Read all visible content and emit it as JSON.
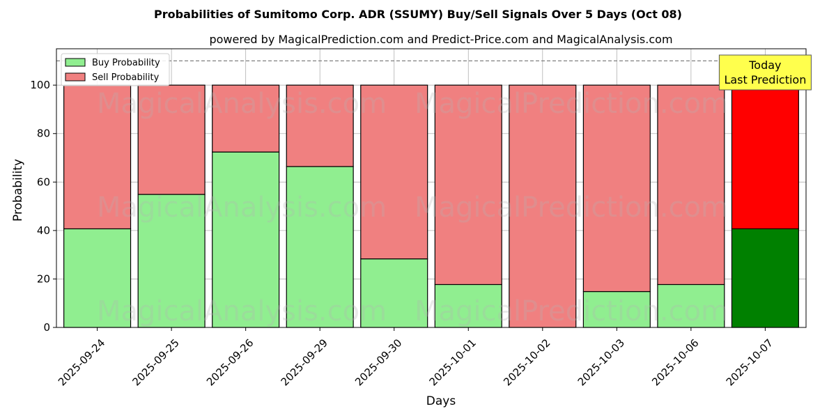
{
  "chart_data": {
    "type": "bar",
    "stacked": true,
    "title": "Probabilities of Sumitomo Corp. ADR (SSUMY) Buy/Sell Signals Over 5 Days (Oct 08)",
    "subtitle": "powered by MagicalPrediction.com and Predict-Price.com and MagicalAnalysis.com",
    "xlabel": "Days",
    "ylabel": "Probability",
    "ylim": [
      0,
      115
    ],
    "yticks": [
      0,
      20,
      40,
      60,
      80,
      100
    ],
    "reference_line": 110,
    "grid": true,
    "legend_position": "top-left",
    "categories": [
      "2025-09-24",
      "2025-09-25",
      "2025-09-26",
      "2025-09-29",
      "2025-09-30",
      "2025-10-01",
      "2025-10-02",
      "2025-10-03",
      "2025-10-06",
      "2025-10-07"
    ],
    "series": [
      {
        "name": "Buy Probability",
        "color": "#90ee90",
        "highlight_color": "#008000",
        "values": [
          40.7,
          54.9,
          72.4,
          66.4,
          28.3,
          17.7,
          0.0,
          14.8,
          17.7,
          40.7
        ]
      },
      {
        "name": "Sell Probability",
        "color": "#f08080",
        "highlight_color": "#ff0000",
        "values": [
          59.3,
          45.1,
          27.6,
          33.6,
          71.7,
          82.3,
          100.0,
          85.2,
          82.3,
          59.3
        ]
      }
    ],
    "highlight_index": 9,
    "annotation": {
      "lines": [
        "Today",
        "Last Prediction"
      ],
      "color": "#ffff4d"
    },
    "watermarks": [
      "MagicalAnalysis.com",
      "MagicalPrediction.com"
    ]
  }
}
